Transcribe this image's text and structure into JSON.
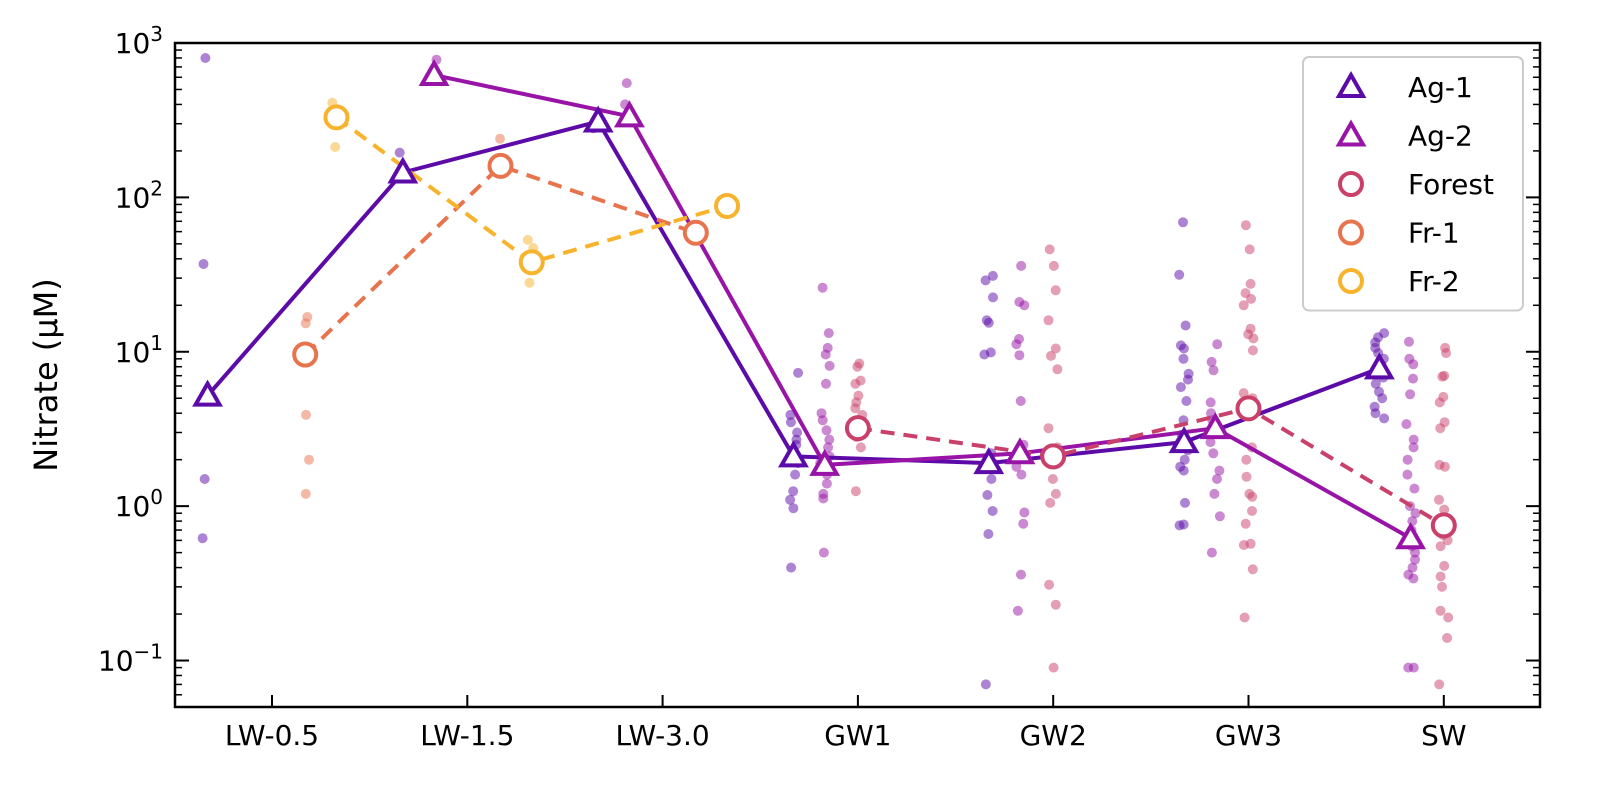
{
  "chart_data": {
    "type": "line",
    "ylabel": "Nitrate (µM)",
    "xlabel": "",
    "yscale": "log",
    "ylim": [
      0.05,
      1000
    ],
    "y_ticks": [
      {
        "value": 0.1,
        "base": "10",
        "exp": "−1"
      },
      {
        "value": 1,
        "base": "10",
        "exp": "0"
      },
      {
        "value": 10,
        "base": "10",
        "exp": "1"
      },
      {
        "value": 100,
        "base": "10",
        "exp": "2"
      },
      {
        "value": 1000,
        "base": "10",
        "exp": "3"
      }
    ],
    "categories": [
      "LW-0.5",
      "LW-1.5",
      "LW-3.0",
      "GW1",
      "GW2",
      "GW3",
      "SW"
    ],
    "legend_position": "top-right",
    "series": [
      {
        "name": "Ag-1",
        "color": "#5c0aa8",
        "marker": "triangle",
        "line": "solid",
        "offset": -0.33,
        "values": [
          5.2,
          145,
          310,
          2.1,
          1.9,
          2.6,
          7.8
        ],
        "points": [
          [
            0.62,
            1.5,
            37,
            800
          ],
          [
            195
          ],
          [
            280
          ],
          [
            0.4,
            0.97,
            1.1,
            1.25,
            1.6,
            1.9,
            2.2,
            2.5,
            2.7,
            3.0,
            3.5,
            3.9,
            7.3
          ],
          [
            0.07,
            0.66,
            0.93,
            1.18,
            1.5,
            1.9,
            2.2,
            9.6,
            9.9,
            15.4,
            16,
            22.5,
            29,
            31
          ],
          [
            0.75,
            0.76,
            1.05,
            1.7,
            1.8,
            2.0,
            2.3,
            2.6,
            2.9,
            3.6,
            4.8,
            5.9,
            6.6,
            7.2,
            9.0,
            10.5,
            11,
            14.8,
            31.5,
            69
          ],
          [
            3.7,
            4.0,
            4.4,
            5.0,
            5.5,
            6.2,
            6.8,
            7.5,
            8.2,
            9.0,
            9.8,
            10.6,
            11.5,
            12.4,
            13.2
          ]
        ]
      },
      {
        "name": "Ag-2",
        "color": "#9814a6",
        "marker": "triangle",
        "line": "solid",
        "offset": -0.17,
        "values": [
          null,
          620,
          335,
          1.85,
          2.2,
          3.2,
          0.62
        ],
        "points": [
          [],
          [
            780
          ],
          [
            400,
            550
          ],
          [
            0.5,
            1.12,
            1.2,
            1.4,
            1.6,
            1.75,
            1.9,
            2.1,
            2.4,
            2.7,
            3.1,
            3.6,
            4.0,
            6.2,
            8.1,
            9.6,
            10.6,
            13.2,
            26
          ],
          [
            0.77,
            0.91,
            0.21,
            0.36,
            1.6,
            1.8,
            2.1,
            2.3,
            2.5,
            4.8,
            9.5,
            11.2,
            12.1,
            20,
            21,
            36
          ],
          [
            0.5,
            0.86,
            1.2,
            1.5,
            1.7,
            2.2,
            2.6,
            3.1,
            3.6,
            4.0,
            4.7,
            7.6,
            8.6,
            11.2
          ],
          [
            0.09,
            0.09,
            0.34,
            0.36,
            0.4,
            0.45,
            0.5,
            0.55,
            0.6,
            0.7,
            0.8,
            0.9,
            1.0,
            1.3,
            1.6,
            2.0,
            2.4,
            2.7,
            3.4,
            5.3,
            6.7,
            8.3,
            9.0,
            11.6
          ]
        ]
      },
      {
        "name": "Forest",
        "color": "#c9406a",
        "marker": "circle",
        "line": "dashed",
        "offset": 0.0,
        "values": [
          null,
          null,
          null,
          3.2,
          2.1,
          4.3,
          0.75
        ],
        "points": [
          [],
          [],
          [],
          [
            1.25,
            2.4,
            2.8,
            3.2,
            3.5,
            3.9,
            4.3,
            4.7,
            5.2,
            6.2,
            6.5,
            8.0,
            8.4
          ],
          [
            0.09,
            0.23,
            0.31,
            1.05,
            1.2,
            1.5,
            2.0,
            2.4,
            3.2,
            7.7,
            9.4,
            10.5,
            16,
            25,
            36,
            46
          ],
          [
            0.19,
            0.39,
            0.56,
            0.57,
            0.77,
            0.93,
            1.15,
            1.2,
            1.55,
            2.0,
            2.4,
            4.0,
            5.0,
            5.4,
            10.2,
            12.2,
            13,
            14.1,
            20,
            22,
            24,
            27.5,
            46,
            66
          ],
          [
            0.07,
            0.14,
            0.19,
            0.21,
            0.3,
            0.35,
            0.41,
            0.55,
            0.6,
            0.65,
            0.95,
            1.1,
            1.8,
            1.85,
            3.2,
            3.5,
            4.7,
            5.1,
            6.9,
            7.0,
            9.8,
            10.6
          ]
        ]
      },
      {
        "name": "Fr-1",
        "color": "#e8744e",
        "marker": "circle",
        "line": "dashed",
        "offset": 0.17,
        "values": [
          9.6,
          160,
          59,
          null,
          null,
          null,
          null
        ],
        "points": [
          [
            1.2,
            2.0,
            3.9,
            15.3,
            16.8
          ],
          [
            240
          ],
          [],
          [],
          [],
          [],
          []
        ]
      },
      {
        "name": "Fr-2",
        "color": "#f7b32b",
        "marker": "circle",
        "line": "dashed",
        "offset": 0.33,
        "values": [
          330,
          38,
          88,
          null,
          null,
          null,
          null
        ],
        "points": [
          [
            212,
            410
          ],
          [
            28,
            47,
            53
          ],
          [],
          [],
          [],
          [],
          []
        ]
      }
    ]
  }
}
